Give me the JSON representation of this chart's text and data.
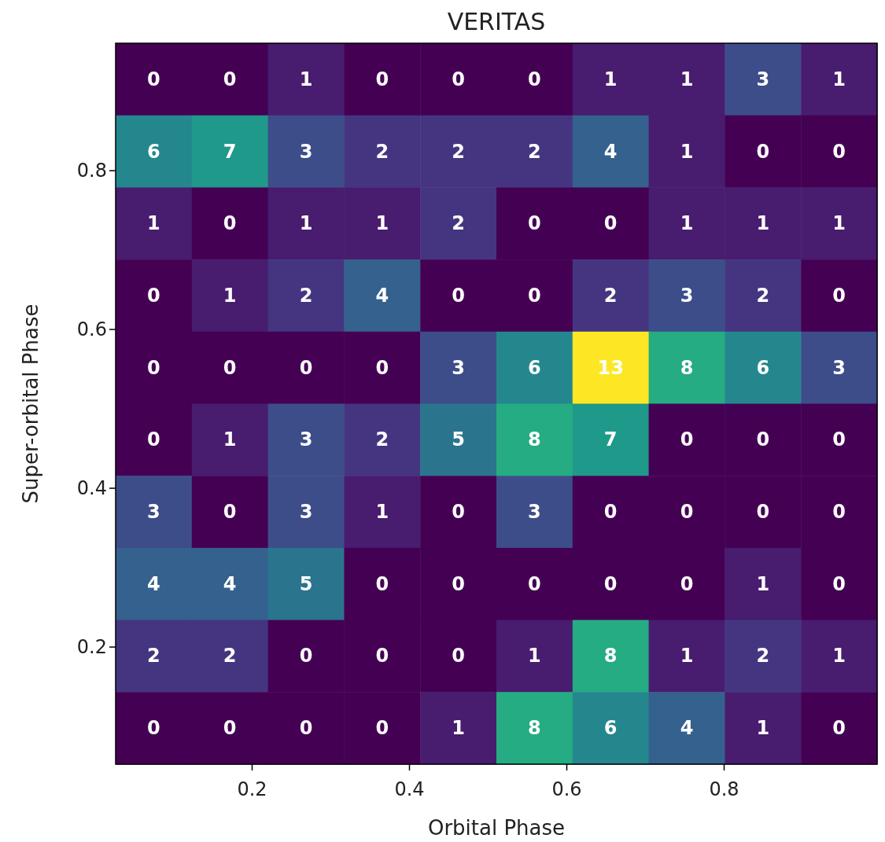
{
  "chart_data": {
    "type": "heatmap",
    "title": "VERITAS",
    "xlabel": "Orbital Phase",
    "ylabel": "Super-orbital Phase",
    "xlim": [
      0.027,
      0.995
    ],
    "ylim": [
      0.052,
      0.96
    ],
    "xticks": [
      0.2,
      0.4,
      0.6,
      0.8
    ],
    "yticks": [
      0.2,
      0.4,
      0.6,
      0.8
    ],
    "data_labels": true,
    "cells": [
      [
        0,
        0,
        1,
        0,
        0,
        0,
        1,
        1,
        3,
        1
      ],
      [
        6,
        7,
        3,
        2,
        2,
        2,
        4,
        1,
        0,
        0
      ],
      [
        1,
        0,
        1,
        1,
        2,
        0,
        0,
        1,
        1,
        1
      ],
      [
        0,
        1,
        2,
        4,
        0,
        0,
        2,
        3,
        2,
        0
      ],
      [
        0,
        0,
        0,
        0,
        3,
        6,
        13,
        8,
        6,
        3
      ],
      [
        0,
        1,
        3,
        2,
        5,
        8,
        7,
        0,
        0,
        0
      ],
      [
        3,
        0,
        3,
        1,
        0,
        3,
        0,
        0,
        0,
        0
      ],
      [
        4,
        4,
        5,
        0,
        0,
        0,
        0,
        0,
        1,
        0
      ],
      [
        2,
        2,
        0,
        0,
        0,
        1,
        8,
        1,
        2,
        1
      ],
      [
        0,
        0,
        0,
        0,
        1,
        8,
        6,
        4,
        1,
        0
      ]
    ]
  }
}
